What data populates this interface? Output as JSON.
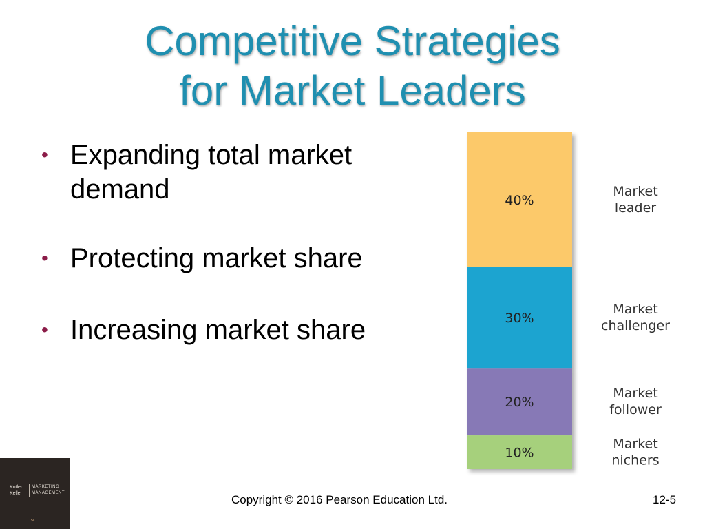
{
  "slide": {
    "title_line1": "Competitive Strategies",
    "title_line2": "for Market Leaders",
    "bullets": [
      "Expanding total market demand",
      "Protecting market share",
      "Increasing market share"
    ],
    "footer": {
      "copyright": "Copyright © 2016 Pearson Education Ltd.",
      "page": "12-5"
    },
    "logo": {
      "brand_line1": "Kotler",
      "brand_line2": "Keller",
      "product_line1": "MARKETING",
      "product_line2": "MANAGEMENT",
      "edition": "15e"
    }
  },
  "colors": {
    "title": "#1f8fb0",
    "bullet": "#8b1c48",
    "leader": "#fcc96a",
    "challenger": "#1aa4d0",
    "follower": "#8779b6",
    "nichers": "#a6d07c"
  },
  "chart_data": {
    "type": "bar",
    "orientation": "stacked-vertical",
    "series": [
      {
        "name": "Market leader",
        "value": 40,
        "label": "40%",
        "color": "#fcc96a"
      },
      {
        "name": "Market challenger",
        "value": 30,
        "label": "30%",
        "color": "#1aa4d0"
      },
      {
        "name": "Market follower",
        "value": 20,
        "label": "20%",
        "color": "#8779b6"
      },
      {
        "name": "Market nichers",
        "value": 10,
        "label": "10%",
        "color": "#a6d07c"
      }
    ],
    "category_labels": [
      [
        "Market",
        "leader"
      ],
      [
        "Market",
        "challenger"
      ],
      [
        "Market",
        "follower"
      ],
      [
        "Market",
        "nichers"
      ]
    ],
    "total": 100,
    "legend": "right"
  }
}
